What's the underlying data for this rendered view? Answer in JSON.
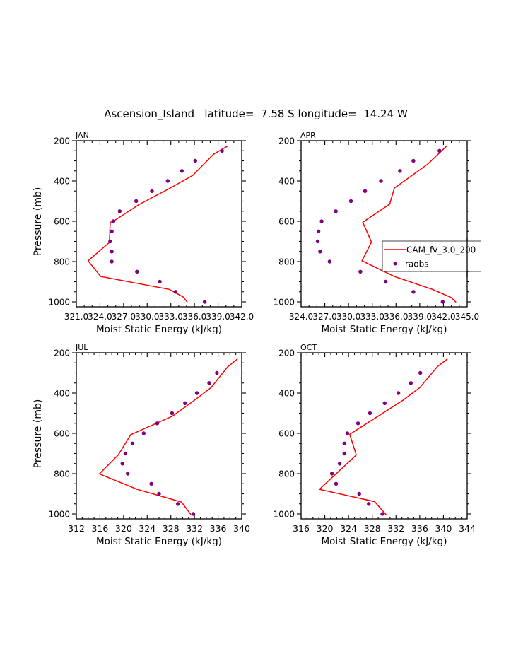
{
  "figure": {
    "title": "Ascension_Island   latitude=  7.58 S longitude=  14.24 W",
    "colors": {
      "model": "#ff0000",
      "obs": "#800080",
      "axis": "#000000"
    }
  },
  "legend": {
    "placement": "inside APR panel, right, clipped",
    "entries": [
      {
        "label": "CAM_fv_3.0_200",
        "style": "line",
        "color": "#ff0000"
      },
      {
        "label": "raobs",
        "style": "marker",
        "color": "#800080"
      }
    ]
  },
  "chart_data": [
    {
      "type": "line",
      "panel_label": "JAN",
      "xlabel": "Moist Static Energy (kJ/kg)",
      "ylabel": "Pressure (mb)",
      "xlim": [
        321,
        342
      ],
      "ylim": [
        200,
        1025
      ],
      "y_inverted": true,
      "xticks": [
        321,
        324,
        327,
        330,
        333,
        336,
        339,
        342
      ],
      "xtick_labels": [
        "321.0",
        "324.0",
        "327.0",
        "330.0",
        "333.0",
        "336.0",
        "339.0",
        "342.0"
      ],
      "yticks": [
        200,
        400,
        600,
        800,
        1000
      ],
      "ytick_labels": [
        "200",
        "400",
        "600",
        "800",
        "1000"
      ],
      "show_ylabel": true,
      "series": [
        {
          "name": "CAM_fv_3.0_200",
          "kind": "line",
          "x": [
            340.2,
            338.4,
            335.8,
            332.7,
            329.0,
            325.7,
            325.3,
            325.2,
            322.5,
            324.1,
            332.8,
            334.6,
            335.1
          ],
          "y": [
            227,
            268,
            372,
            440,
            516,
            600,
            605,
            705,
            796,
            874,
            938,
            976,
            1002
          ]
        },
        {
          "name": "raobs",
          "kind": "scatter",
          "x": [
            339.5,
            336.1,
            334.4,
            332.6,
            330.6,
            328.6,
            326.5,
            325.7,
            325.5,
            325.3,
            325.5,
            325.5,
            328.7,
            331.6,
            333.6,
            337.3
          ],
          "y": [
            250,
            300,
            350,
            400,
            450,
            500,
            550,
            600,
            650,
            700,
            750,
            800,
            850,
            900,
            950,
            1000
          ]
        }
      ]
    },
    {
      "type": "line",
      "panel_label": "APR",
      "xlabel": "Moist Static Energy (kJ/kg)",
      "ylabel": "",
      "xlim": [
        324,
        345
      ],
      "ylim": [
        200,
        1025
      ],
      "y_inverted": true,
      "xticks": [
        324,
        327,
        330,
        333,
        336,
        339,
        342,
        345
      ],
      "xtick_labels": [
        "324.0",
        "327.0",
        "330.0",
        "333.0",
        "336.0",
        "339.0",
        "342.0",
        "345.0"
      ],
      "yticks": [
        200,
        400,
        600,
        800,
        1000
      ],
      "ytick_labels": [
        "200",
        "400",
        "600",
        "800",
        "1000"
      ],
      "show_ylabel": false,
      "series": [
        {
          "name": "CAM_fv_3.0_200",
          "kind": "line",
          "x": [
            342.4,
            340.0,
            335.8,
            335.2,
            331.8,
            332.9,
            331.7,
            335.8,
            340.6,
            343.0,
            343.6
          ],
          "y": [
            227,
            317,
            435,
            515,
            605,
            703,
            796,
            874,
            938,
            979,
            1002
          ]
        },
        {
          "name": "raobs",
          "kind": "scatter",
          "x": [
            341.5,
            338.2,
            336.5,
            334.1,
            332.1,
            330.3,
            328.4,
            326.6,
            326.2,
            326.1,
            326.4,
            327.6,
            331.5,
            334.7,
            338.2,
            341.9
          ],
          "y": [
            250,
            300,
            350,
            400,
            450,
            500,
            550,
            600,
            650,
            700,
            750,
            800,
            850,
            900,
            950,
            1000
          ]
        }
      ]
    },
    {
      "type": "line",
      "panel_label": "JUL",
      "xlabel": "Moist Static Energy (kJ/kg)",
      "ylabel": "Pressure (mb)",
      "xlim": [
        312,
        340
      ],
      "ylim": [
        200,
        1025
      ],
      "y_inverted": true,
      "xticks": [
        312,
        316,
        320,
        324,
        328,
        332,
        336,
        340
      ],
      "xtick_labels": [
        "312",
        "316",
        "320",
        "324",
        "328",
        "332",
        "336",
        "340"
      ],
      "yticks": [
        200,
        400,
        600,
        800,
        1000
      ],
      "ytick_labels": [
        "200",
        "400",
        "600",
        "800",
        "1000"
      ],
      "show_ylabel": true,
      "series": [
        {
          "name": "CAM_fv_3.0_200",
          "kind": "line",
          "x": [
            339.3,
            337.6,
            334.8,
            331.9,
            328.3,
            321.2,
            319.1,
            315.9,
            322.3,
            329.8,
            331.4
          ],
          "y": [
            230,
            271,
            373,
            438,
            514,
            607,
            707,
            801,
            878,
            941,
            1003
          ]
        },
        {
          "name": "raobs",
          "kind": "scatter",
          "x": [
            335.8,
            334.5,
            332.4,
            330.4,
            328.2,
            325.7,
            323.4,
            321.5,
            320.3,
            319.8,
            320.7,
            324.7,
            326.0,
            329.2,
            331.8
          ],
          "y": [
            300,
            350,
            400,
            450,
            500,
            550,
            600,
            650,
            700,
            750,
            800,
            850,
            900,
            950,
            1000
          ]
        }
      ]
    },
    {
      "type": "line",
      "panel_label": "OCT",
      "xlabel": "Moist Static Energy (kJ/kg)",
      "ylabel": "",
      "xlim": [
        316,
        344
      ],
      "ylim": [
        200,
        1025
      ],
      "y_inverted": true,
      "xticks": [
        316,
        320,
        324,
        328,
        332,
        336,
        340,
        344
      ],
      "xtick_labels": [
        "316",
        "320",
        "324",
        "328",
        "332",
        "336",
        "340",
        "344"
      ],
      "yticks": [
        200,
        400,
        600,
        800,
        1000
      ],
      "ytick_labels": [
        "200",
        "400",
        "600",
        "800",
        "1000"
      ],
      "show_ylabel": false,
      "series": [
        {
          "name": "CAM_fv_3.0_200",
          "kind": "line",
          "x": [
            340.7,
            339.0,
            336.0,
            333.2,
            324.2,
            325.3,
            319.1,
            328.4,
            330.4
          ],
          "y": [
            230,
            268,
            373,
            435,
            605,
            707,
            878,
            939,
            1006
          ]
        },
        {
          "name": "raobs",
          "kind": "scatter",
          "x": [
            336.1,
            334.5,
            332.4,
            330.1,
            327.6,
            325.6,
            323.8,
            323.3,
            323.3,
            322.5,
            321.2,
            321.9,
            325.8,
            327.4,
            329.7
          ],
          "y": [
            300,
            350,
            400,
            450,
            500,
            550,
            600,
            650,
            700,
            750,
            800,
            850,
            900,
            950,
            1000
          ]
        }
      ]
    }
  ]
}
